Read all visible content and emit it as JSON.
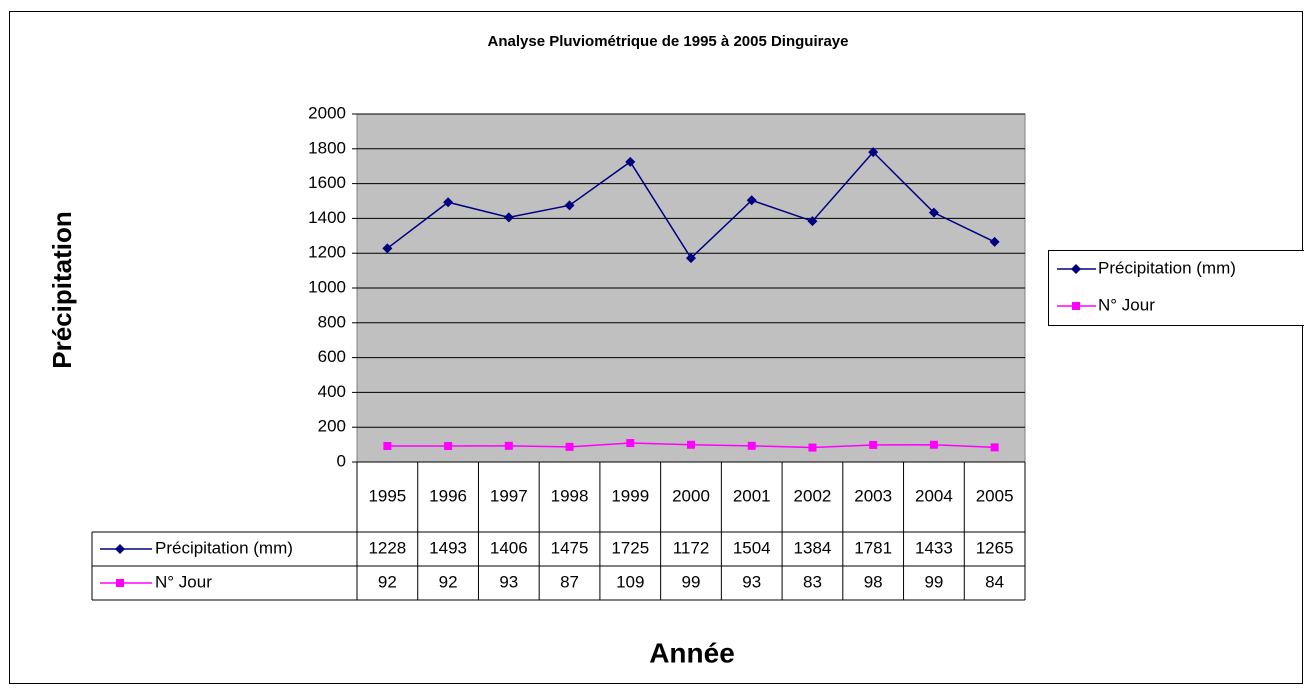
{
  "chart_data": {
    "type": "line",
    "title": "Analyse Pluviométrique de 1995 à 2005 Dinguiraye",
    "y_label": "Précipitation",
    "x_label": "Année",
    "categories": [
      "1995",
      "1996",
      "1997",
      "1998",
      "1999",
      "2000",
      "2001",
      "2002",
      "2003",
      "2004",
      "2005"
    ],
    "series": [
      {
        "name": "Précipitation (mm)",
        "color": "#000080",
        "marker": "diamond",
        "values": [
          1228,
          1493,
          1406,
          1475,
          1725,
          1172,
          1504,
          1384,
          1781,
          1433,
          1265
        ]
      },
      {
        "name": "N° Jour",
        "color": "#ff00ff",
        "marker": "square",
        "values": [
          92,
          92,
          93,
          87,
          109,
          99,
          93,
          83,
          98,
          99,
          84
        ]
      }
    ],
    "ylim": [
      0,
      2000
    ],
    "yticks": [
      0,
      200,
      400,
      600,
      800,
      1000,
      1200,
      1400,
      1600,
      1800,
      2000
    ],
    "grid": true,
    "plot_background": "#c0c0c0",
    "legend": "right",
    "data_table": true
  }
}
